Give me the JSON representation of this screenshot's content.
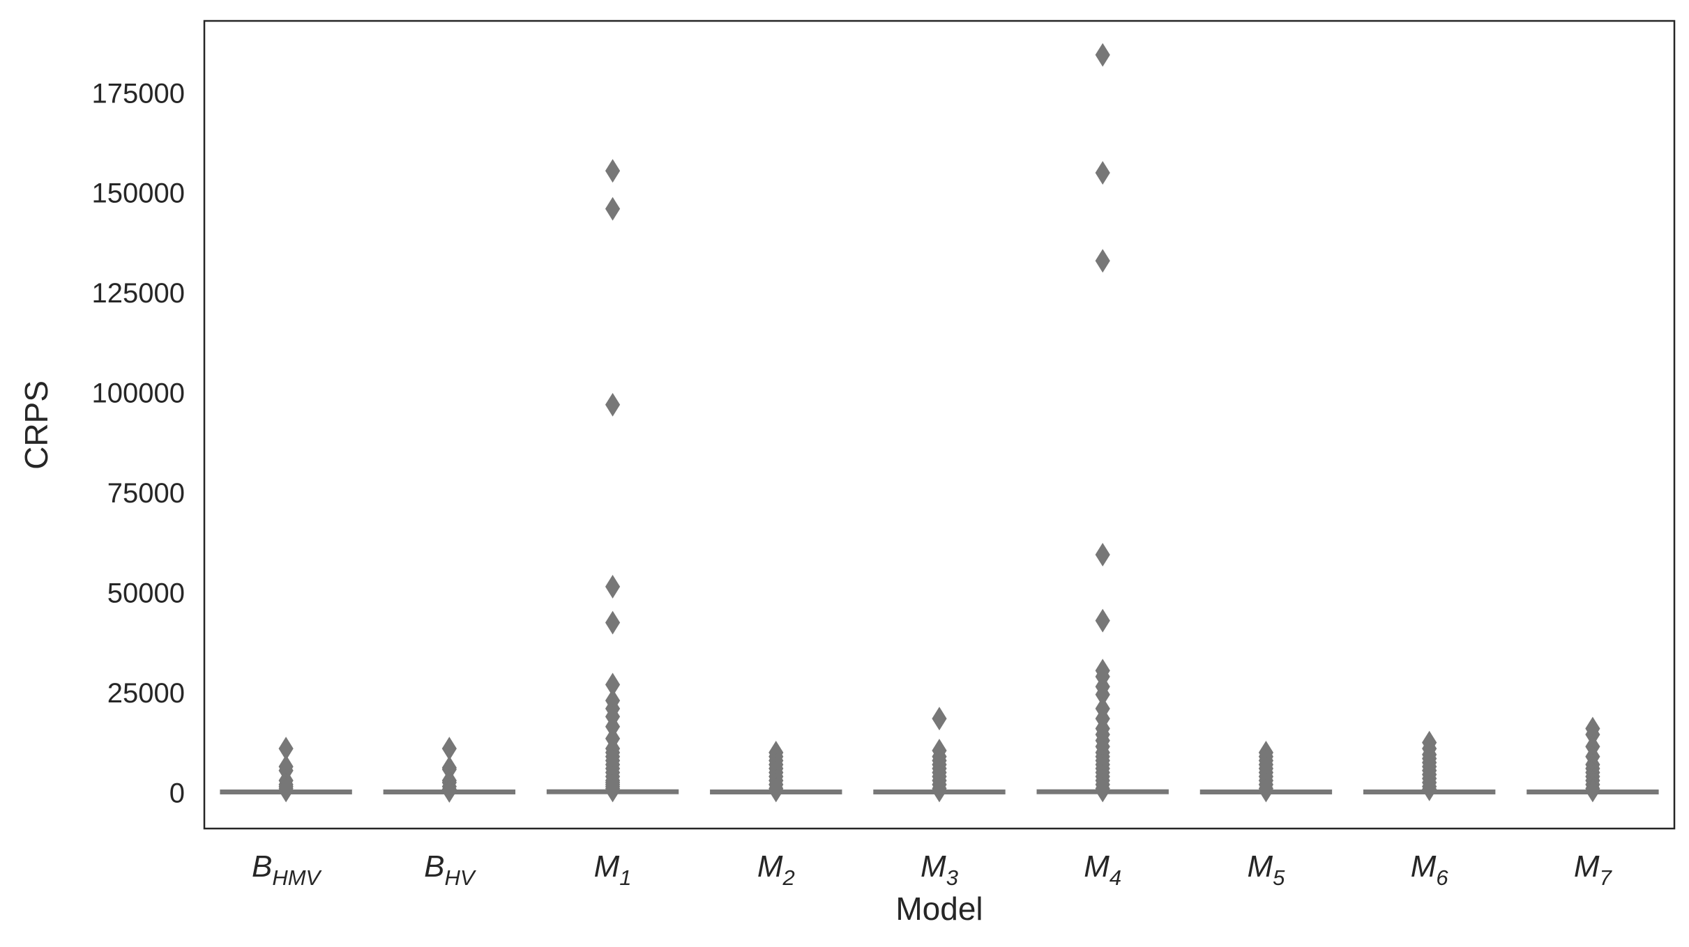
{
  "chart_data": {
    "type": "box",
    "xlabel": "Model",
    "ylabel": "CRPS",
    "ylim": [
      -9000,
      193000
    ],
    "yticks": [
      0,
      25000,
      50000,
      75000,
      100000,
      125000,
      150000,
      175000
    ],
    "ytick_labels": [
      "0",
      "25000",
      "50000",
      "75000",
      "100000",
      "125000",
      "150000",
      "175000"
    ],
    "grid": false,
    "categories": [
      {
        "base": "B",
        "sub": "HMV"
      },
      {
        "base": "B",
        "sub": "HV"
      },
      {
        "base": "M",
        "sub": "1"
      },
      {
        "base": "M",
        "sub": "2"
      },
      {
        "base": "M",
        "sub": "3"
      },
      {
        "base": "M",
        "sub": "4"
      },
      {
        "base": "M",
        "sub": "5"
      },
      {
        "base": "M",
        "sub": "6"
      },
      {
        "base": "M",
        "sub": "7"
      }
    ],
    "box_color": "#777777",
    "series": [
      {
        "median": 150,
        "outliers": [
          11000,
          6500,
          5500,
          3000,
          2000,
          1500,
          1000,
          500
        ]
      },
      {
        "median": 150,
        "outliers": [
          11000,
          6200,
          5800,
          3000,
          2500,
          1500,
          800,
          400
        ]
      },
      {
        "median": 200,
        "outliers": [
          155500,
          146000,
          97000,
          51500,
          42500,
          27000,
          23000,
          21000,
          19000,
          16500,
          13500,
          11000,
          10000,
          9000,
          8000,
          7000,
          6000,
          5000,
          4000,
          3000,
          2500,
          2000,
          1500,
          1000,
          500
        ]
      },
      {
        "median": 150,
        "outliers": [
          10000,
          9000,
          8000,
          7000,
          6000,
          5000,
          4000,
          3000,
          2000,
          1000,
          500
        ]
      },
      {
        "median": 150,
        "outliers": [
          18500,
          10500,
          9000,
          8000,
          7000,
          6000,
          5000,
          4000,
          3000,
          2000,
          1000,
          500
        ]
      },
      {
        "median": 200,
        "outliers": [
          184500,
          155000,
          133000,
          59500,
          43000,
          30500,
          29000,
          26500,
          24500,
          21000,
          18500,
          16000,
          14500,
          13000,
          11500,
          10000,
          9000,
          8000,
          7000,
          6000,
          5000,
          4000,
          3000,
          2000,
          1000,
          500
        ]
      },
      {
        "median": 150,
        "outliers": [
          10000,
          9000,
          8000,
          7000,
          6000,
          5000,
          4000,
          3000,
          2000,
          1000,
          500
        ]
      },
      {
        "median": 150,
        "outliers": [
          12500,
          11000,
          9500,
          8500,
          7500,
          6500,
          5500,
          4500,
          3500,
          2500,
          1500,
          800
        ]
      },
      {
        "median": 150,
        "outliers": [
          16000,
          14500,
          11500,
          9000,
          7000,
          6000,
          5000,
          4000,
          3000,
          2000,
          1000,
          500
        ]
      }
    ]
  }
}
